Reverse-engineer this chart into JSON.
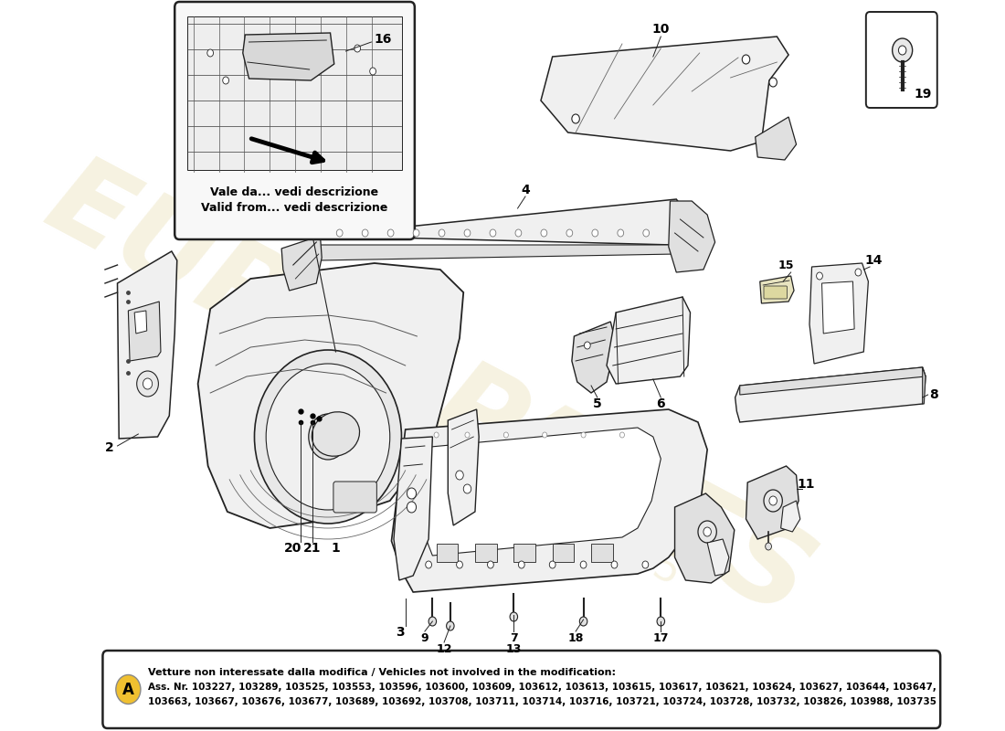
{
  "background_color": "#ffffff",
  "footer_title": "Vetture non interessate dalla modifica / Vehicles not involved in the modification:",
  "footer_line1": "Ass. Nr. 103227, 103289, 103525, 103553, 103596, 103600, 103609, 103612, 103613, 103615, 103617, 103621, 103624, 103627, 103644, 103647,",
  "footer_line2": "103663, 103667, 103676, 103677, 103689, 103692, 103708, 103711, 103714, 103716, 103721, 103724, 103728, 103732, 103826, 103988, 103735",
  "inset_text_line1": "Vale da... vedi descrizione",
  "inset_text_line2": "Valid from... vedi descrizione",
  "wm1": "eurospares",
  "wm2": "passion since 1985",
  "label_A_color": "#f0c030",
  "label_A_text": "A",
  "line_color": "#222222",
  "fill_light": "#f0f0f0",
  "fill_mid": "#e0e0e0",
  "fill_dark": "#cccccc"
}
